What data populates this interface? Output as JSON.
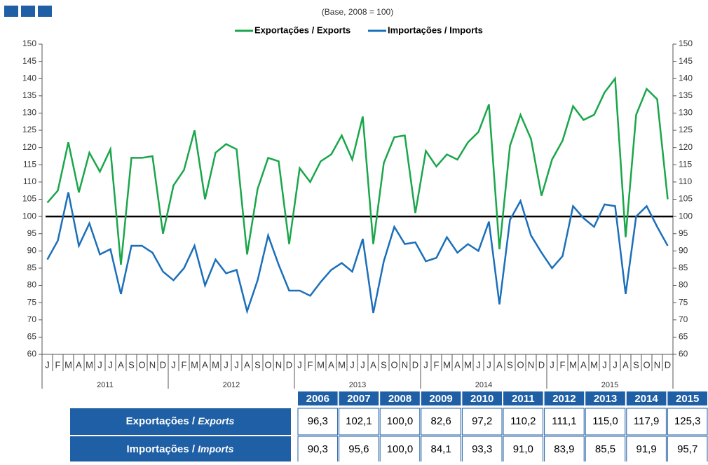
{
  "chart_data": {
    "type": "line",
    "subtitle": "(Base, 2008 = 100)",
    "categories": [
      "J",
      "F",
      "M",
      "A",
      "M",
      "J",
      "J",
      "A",
      "S",
      "O",
      "N",
      "D",
      "J",
      "F",
      "M",
      "A",
      "M",
      "J",
      "J",
      "A",
      "S",
      "O",
      "N",
      "D",
      "J",
      "F",
      "M",
      "A",
      "M",
      "J",
      "J",
      "A",
      "S",
      "O",
      "N",
      "D",
      "J",
      "F",
      "M",
      "A",
      "M",
      "J",
      "J",
      "A",
      "S",
      "O",
      "N",
      "D",
      "J",
      "F",
      "M",
      "A",
      "M",
      "J",
      "J",
      "A",
      "S",
      "O",
      "N",
      "D"
    ],
    "years": [
      "2011",
      "2012",
      "2013",
      "2014",
      "2015"
    ],
    "series": [
      {
        "name": "Exportações / Exports",
        "color": "#1aa64a",
        "values": [
          104,
          107.5,
          121.5,
          107,
          118.5,
          113,
          119.5,
          86,
          117,
          117,
          117.5,
          95,
          109,
          113.5,
          125,
          105,
          118.5,
          121,
          119.5,
          89,
          108,
          117,
          116,
          92,
          114,
          110,
          116,
          118,
          123.5,
          116.5,
          129,
          92,
          115.5,
          123,
          123.5,
          101,
          119,
          114.5,
          118,
          116.5,
          121.5,
          124.5,
          132.5,
          90.5,
          120.5,
          129.5,
          122.5,
          106,
          116.5,
          122,
          132,
          128,
          129.5,
          136,
          140,
          94,
          129.5,
          137,
          134,
          105
        ]
      },
      {
        "name": "Importações / Imports",
        "color": "#1b6fba",
        "values": [
          87.5,
          93,
          107,
          91.5,
          98,
          89,
          90.5,
          77.5,
          91.5,
          91.5,
          89.5,
          84,
          81.5,
          85,
          91.5,
          80,
          87.5,
          83.5,
          84.5,
          72.5,
          81.5,
          94.5,
          86,
          78.5,
          78.5,
          77,
          81,
          84.5,
          86.5,
          84,
          93.5,
          72,
          87,
          97,
          92,
          92.5,
          87,
          88,
          94,
          89.5,
          92,
          90,
          98.5,
          74.5,
          99,
          104.5,
          94.5,
          89.5,
          85,
          88.5,
          103,
          99.5,
          97,
          103.5,
          103,
          77.5,
          100,
          103,
          97,
          91.5
        ]
      }
    ],
    "reference_line": 100,
    "ylim": [
      60,
      150
    ],
    "yticks": [
      60,
      65,
      70,
      75,
      80,
      85,
      90,
      95,
      100,
      105,
      110,
      115,
      120,
      125,
      130,
      135,
      140,
      145,
      150
    ],
    "y2lim": [
      60,
      150
    ],
    "y2ticks": [
      60,
      65,
      70,
      75,
      80,
      85,
      90,
      95,
      100,
      105,
      110,
      115,
      120,
      125,
      130,
      135,
      140,
      145,
      150
    ]
  },
  "table": {
    "columns": [
      "2006",
      "2007",
      "2008",
      "2009",
      "2010",
      "2011",
      "2012",
      "2013",
      "2014",
      "2015"
    ],
    "rows": [
      {
        "label": "Exportações / ",
        "label_italic": "Exports",
        "cells": [
          "96,3",
          "102,1",
          "100,0",
          "82,6",
          "97,2",
          "110,2",
          "111,1",
          "115,0",
          "117,9",
          "125,3"
        ]
      },
      {
        "label": "Importações / ",
        "label_italic": "Imports",
        "cells": [
          "90,3",
          "95,6",
          "100,0",
          "84,1",
          "93,3",
          "91,0",
          "83,9",
          "85,5",
          "91,9",
          "95,7"
        ]
      }
    ]
  }
}
